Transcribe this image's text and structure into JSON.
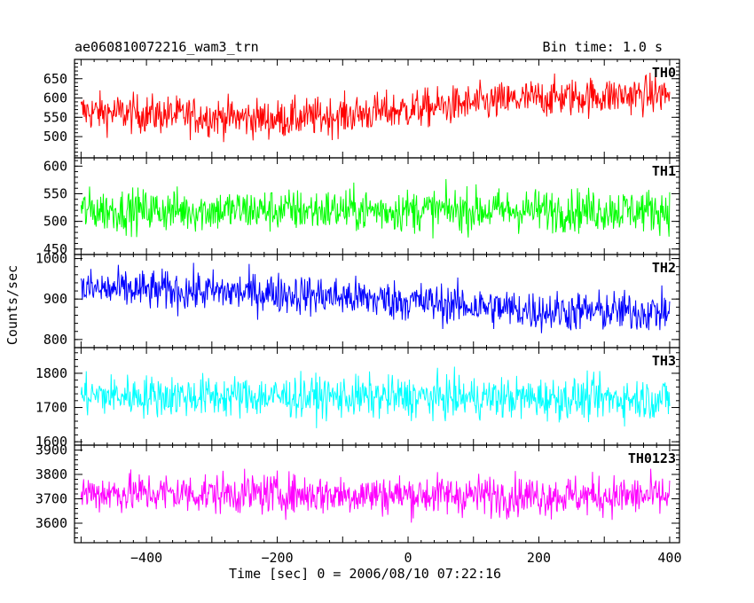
{
  "chart_data": {
    "type": "line",
    "title_left": "ae060810072216_wam3_trn",
    "title_right": "Bin time: 1.0 s",
    "xlabel": "Time [sec] 0 = 2006/08/10 07:22:16",
    "ylabel": "Counts/sec",
    "xlim": [
      -510,
      415
    ],
    "x_ticks": [
      -400,
      -200,
      0,
      200,
      400
    ],
    "x_tick_labels": [
      "−400",
      "−200",
      "0",
      "200",
      "400"
    ],
    "x_range": [
      -500,
      400
    ],
    "bin_time": 1.0,
    "panels": [
      {
        "name": "TH0",
        "color": "#ff0000",
        "ylim": [
          445,
          700
        ],
        "y_ticks": [
          500,
          550,
          600,
          650
        ],
        "baseline": [
          [
            -500,
            565
          ],
          [
            -350,
            555
          ],
          [
            -200,
            545
          ],
          [
            -100,
            555
          ],
          [
            0,
            570
          ],
          [
            100,
            585
          ],
          [
            200,
            600
          ],
          [
            300,
            605
          ],
          [
            400,
            610
          ]
        ],
        "noise": 45
      },
      {
        "name": "TH1",
        "color": "#00ff00",
        "ylim": [
          440,
          615
        ],
        "y_ticks": [
          450,
          500,
          550,
          600
        ],
        "baseline": [
          [
            -500,
            520
          ],
          [
            400,
            520
          ]
        ],
        "noise": 35
      },
      {
        "name": "TH2",
        "color": "#0000ff",
        "ylim": [
          780,
          1010
        ],
        "y_ticks": [
          800,
          900,
          1000
        ],
        "baseline": [
          [
            -500,
            925
          ],
          [
            -200,
            915
          ],
          [
            0,
            895
          ],
          [
            200,
            870
          ],
          [
            400,
            868
          ]
        ],
        "noise": 45
      },
      {
        "name": "TH3",
        "color": "#00ffff",
        "ylim": [
          1590,
          1875
        ],
        "y_ticks": [
          1600,
          1700,
          1800
        ],
        "baseline": [
          [
            -500,
            1735
          ],
          [
            400,
            1725
          ]
        ],
        "noise": 55
      },
      {
        "name": "TH0123",
        "color": "#ff00ff",
        "ylim": [
          3520,
          3920
        ],
        "y_ticks": [
          3600,
          3700,
          3800,
          3900
        ],
        "baseline": [
          [
            -500,
            3725
          ],
          [
            400,
            3710
          ]
        ],
        "noise": 75
      }
    ]
  }
}
